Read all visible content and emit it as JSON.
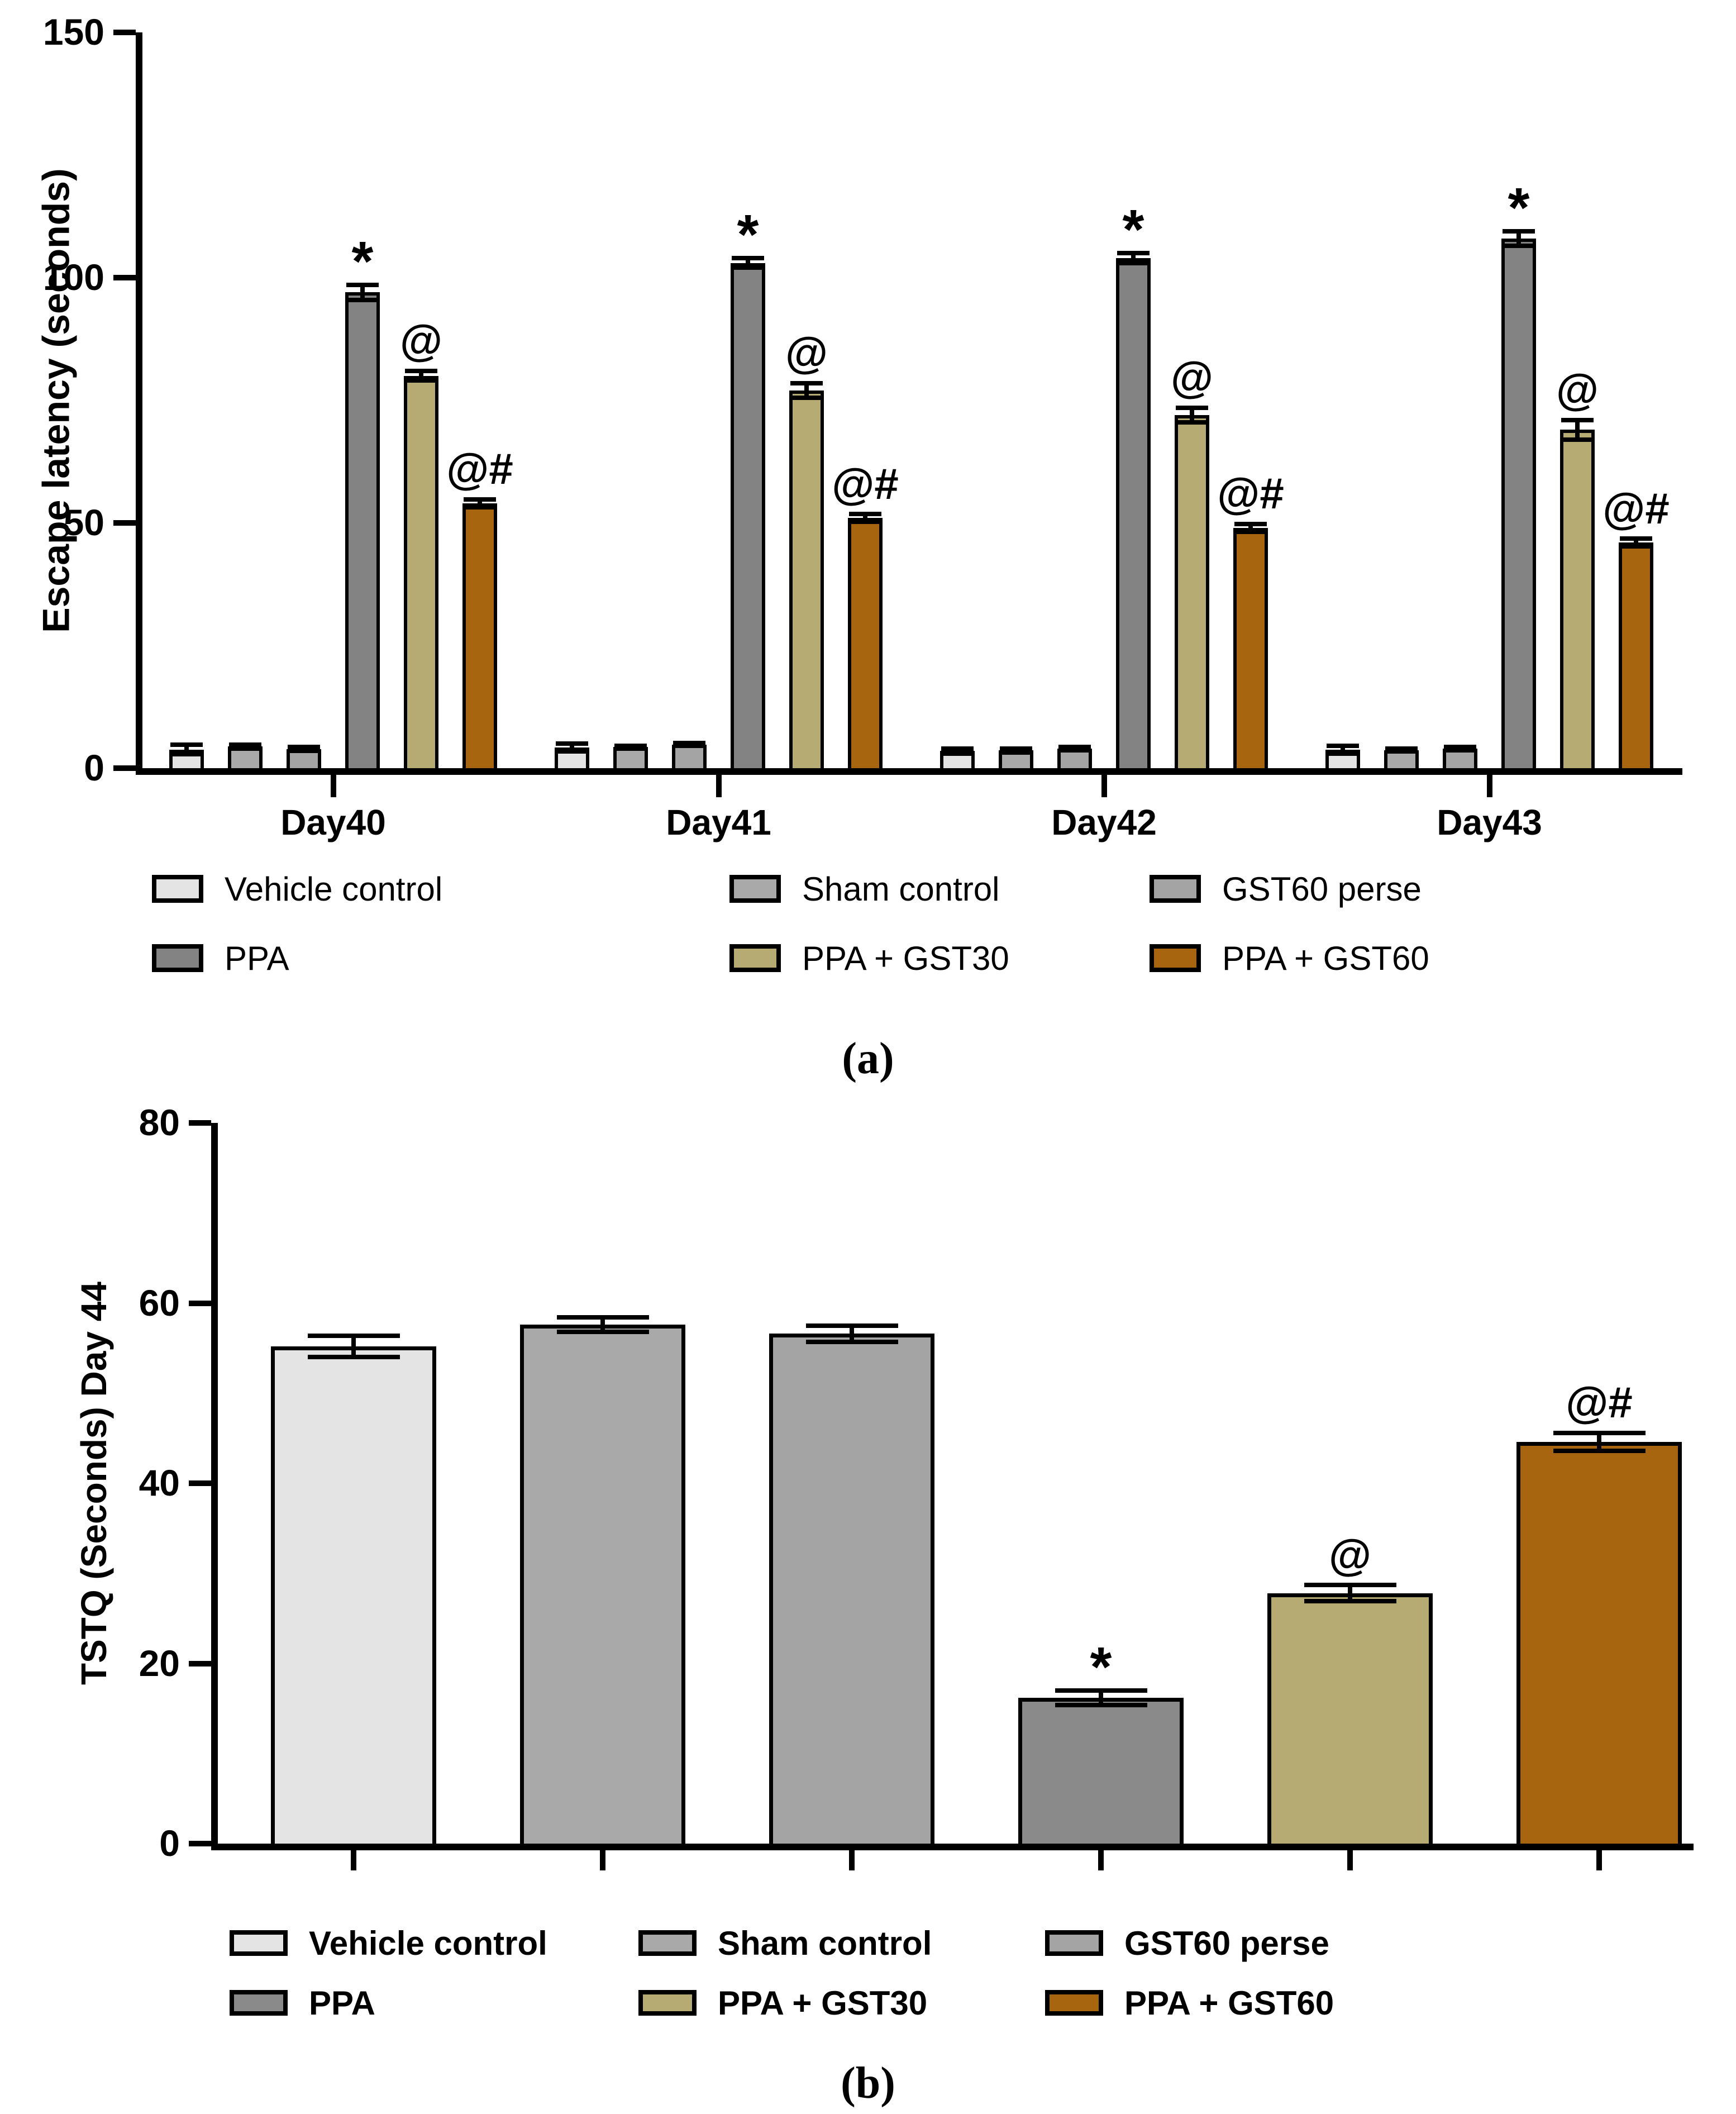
{
  "figure": {
    "background": "#ffffff",
    "axis_color": "#000000"
  },
  "chart_data": [
    {
      "id": "a",
      "type": "bar",
      "title": "",
      "caption": "(a)",
      "ylabel": "Escape latency (seconds)",
      "xlabel": "",
      "ylim": [
        0,
        150
      ],
      "yticks": [
        0,
        50,
        100,
        150
      ],
      "grid": false,
      "legend_position": "below",
      "categories": [
        "Day40",
        "Day41",
        "Day42",
        "Day43"
      ],
      "series": [
        {
          "name": "Vehicle control",
          "color": "#e4e4e4",
          "values": [
            3.8,
            4.2,
            3.5,
            3.8
          ],
          "errors": [
            1.0,
            0.8,
            0.5,
            0.8
          ],
          "annotation": ""
        },
        {
          "name": "Sham control",
          "color": "#a9a9a9",
          "values": [
            4.4,
            4.3,
            3.6,
            3.7
          ],
          "errors": [
            0.4,
            0.3,
            0.4,
            0.3
          ],
          "annotation": ""
        },
        {
          "name": "GST60 perse",
          "color": "#a4a4a4",
          "values": [
            3.9,
            4.8,
            4.0,
            4.0
          ],
          "errors": [
            0.4,
            0.3,
            0.3,
            0.3
          ],
          "annotation": ""
        },
        {
          "name": "PPA",
          "color": "#838383",
          "values": [
            97,
            103,
            104,
            108
          ],
          "errors": [
            1.5,
            1.0,
            1.0,
            1.5
          ],
          "annotation": "*"
        },
        {
          "name": "PPA + GST30",
          "color": "#b5ab73",
          "values": [
            80,
            77,
            72,
            69
          ],
          "errors": [
            1.0,
            1.5,
            1.5,
            2.0
          ],
          "annotation": "@"
        },
        {
          "name": "PPA + GST60",
          "color": "#a6650e",
          "values": [
            54,
            51,
            49,
            46
          ],
          "errors": [
            0.8,
            0.8,
            0.8,
            0.8
          ],
          "annotation": "@#"
        }
      ]
    },
    {
      "id": "b",
      "type": "bar",
      "title": "",
      "caption": "(b)",
      "ylabel": "TSTQ (Seconds) Day 44",
      "xlabel": "",
      "ylim": [
        0,
        80
      ],
      "yticks": [
        0,
        20,
        40,
        60,
        80
      ],
      "grid": false,
      "legend_position": "below",
      "categories": [
        ""
      ],
      "series": [
        {
          "name": "Vehicle control",
          "color": "#e4e4e4",
          "values": [
            55.2
          ],
          "errors": [
            1.2
          ],
          "annotation": ""
        },
        {
          "name": "Sham control",
          "color": "#a9a9a9",
          "values": [
            57.6
          ],
          "errors": [
            0.8
          ],
          "annotation": ""
        },
        {
          "name": "GST60 perse",
          "color": "#a4a4a4",
          "values": [
            56.6
          ],
          "errors": [
            0.9
          ],
          "annotation": ""
        },
        {
          "name": "PPA",
          "color": "#8a8a8a",
          "values": [
            16.2
          ],
          "errors": [
            0.8
          ],
          "annotation": "*"
        },
        {
          "name": "PPA + GST30",
          "color": "#b5ab73",
          "values": [
            27.8
          ],
          "errors": [
            0.9
          ],
          "annotation": "@"
        },
        {
          "name": "PPA + GST60",
          "color": "#a6650e",
          "values": [
            44.6
          ],
          "errors": [
            1.0
          ],
          "annotation": "@#"
        }
      ]
    }
  ]
}
